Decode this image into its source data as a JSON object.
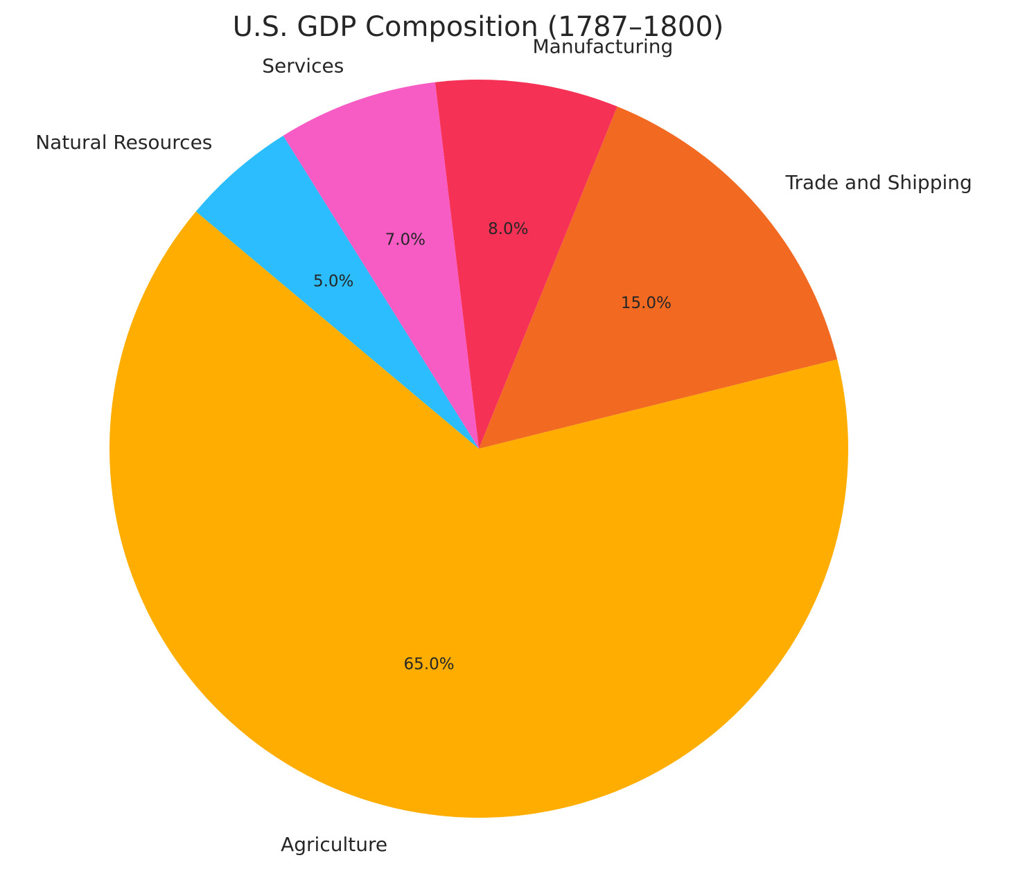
{
  "chart_data": {
    "type": "pie",
    "title": "U.S. GDP Composition (1787–1800)",
    "start_angle_deg": 140,
    "direction": "counterclockwise",
    "slices": [
      {
        "label": "Agriculture",
        "value": 65.0,
        "pct_label": "65.0%",
        "color": "#FFAE00"
      },
      {
        "label": "Trade and Shipping",
        "value": 15.0,
        "pct_label": "15.0%",
        "color": "#F26A22"
      },
      {
        "label": "Manufacturing",
        "value": 8.0,
        "pct_label": "8.0%",
        "color": "#F53255"
      },
      {
        "label": "Services",
        "value": 7.0,
        "pct_label": "7.0%",
        "color": "#F75BC4"
      },
      {
        "label": "Natural Resources",
        "value": 5.0,
        "pct_label": "5.0%",
        "color": "#2BBDFD"
      }
    ]
  }
}
